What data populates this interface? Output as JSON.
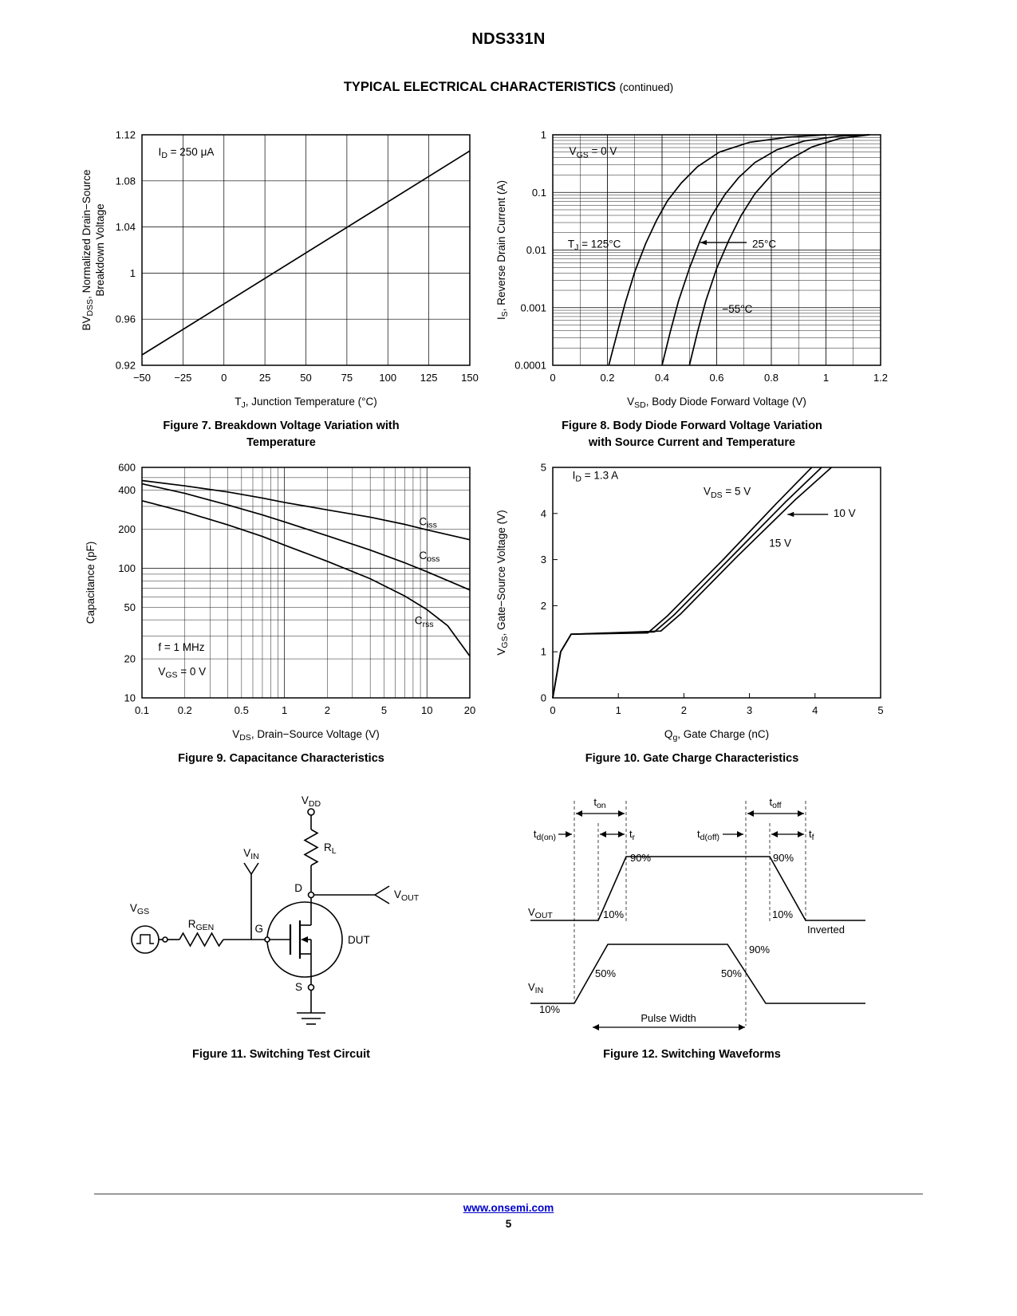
{
  "page": {
    "title": "NDS331N",
    "section_heading": "TYPICAL ELECTRICAL CHARACTERISTICS",
    "section_continued": "(continued)",
    "footer_link": "www.onsemi.com",
    "page_number": "5"
  },
  "captions": {
    "fig7": [
      "Figure 7. Breakdown Voltage Variation with",
      "Temperature"
    ],
    "fig8": [
      "Figure 8. Body Diode Forward Voltage Variation",
      "with Source Current and Temperature"
    ],
    "fig9": [
      "Figure 9. Capacitance Characteristics"
    ],
    "fig10": [
      "Figure 10. Gate Charge Characteristics"
    ],
    "fig11": [
      "Figure 11. Switching Test Circuit"
    ],
    "fig12": [
      "Figure 12. Switching Waveforms"
    ]
  },
  "chart_data": [
    {
      "id": "fig7",
      "type": "line",
      "grid": "both",
      "x": {
        "label": "T~J~, Junction Temperature (°C)",
        "scale": "linear",
        "min": -50,
        "max": 150,
        "ticks": [
          -50,
          -25,
          0,
          25,
          50,
          75,
          100,
          125,
          150
        ],
        "tick_labels": [
          "−50",
          "−25",
          "0",
          "25",
          "50",
          "75",
          "100",
          "125",
          "150"
        ]
      },
      "y": {
        "label_lines": [
          "BV~DSS~, Normalized Drain−Source",
          "Breakdown Voltage"
        ],
        "scale": "linear",
        "min": 0.92,
        "max": 1.12,
        "ticks": [
          0.92,
          0.96,
          1,
          1.04,
          1.08,
          1.12
        ],
        "tick_labels": [
          "0.92",
          "0.96",
          "1",
          "1.04",
          "1.08",
          "1.12"
        ]
      },
      "series": [
        {
          "name": "bvdss-normalized",
          "points": [
            [
              -50,
              0.929
            ],
            [
              150,
              1.106
            ]
          ]
        }
      ],
      "annotations": [
        {
          "text": "I~D~ = 250 μA",
          "x": -40,
          "y": 1.102
        }
      ]
    },
    {
      "id": "fig8",
      "type": "line",
      "grid": "both",
      "x": {
        "label": "V~SD~, Body Diode Forward Voltage (V)",
        "scale": "linear",
        "min": 0,
        "max": 1.2,
        "minor_step": 0.1,
        "ticks": [
          0,
          0.2,
          0.4,
          0.6,
          0.8,
          1,
          1.2
        ],
        "tick_labels": [
          "0",
          "0.2",
          "0.4",
          "0.6",
          "0.8",
          "1",
          "1.2"
        ]
      },
      "y": {
        "label_lines": [
          "I~S~, Reverse Drain Current (A)"
        ],
        "scale": "log",
        "min": 0.0001,
        "max": 1,
        "ticks": [
          1,
          0.1,
          0.01,
          0.001,
          0.0001
        ],
        "tick_labels": [
          "1",
          "0.1",
          "0.01",
          "0.001",
          "0.0001"
        ]
      },
      "series": [
        {
          "name": "tj-125c",
          "points": [
            [
              0.205,
              0.0001
            ],
            [
              0.235,
              0.00035
            ],
            [
              0.265,
              0.0012
            ],
            [
              0.3,
              0.0042
            ],
            [
              0.34,
              0.013
            ],
            [
              0.38,
              0.033
            ],
            [
              0.42,
              0.072
            ],
            [
              0.47,
              0.145
            ],
            [
              0.53,
              0.28
            ],
            [
              0.61,
              0.5
            ],
            [
              0.72,
              0.74
            ],
            [
              0.86,
              0.91
            ],
            [
              1.0,
              1.0
            ]
          ]
        },
        {
          "name": "tj-25c",
          "points": [
            [
              0.4,
              0.0001
            ],
            [
              0.43,
              0.00038
            ],
            [
              0.46,
              0.0013
            ],
            [
              0.5,
              0.0048
            ],
            [
              0.54,
              0.015
            ],
            [
              0.58,
              0.038
            ],
            [
              0.63,
              0.092
            ],
            [
              0.68,
              0.18
            ],
            [
              0.74,
              0.33
            ],
            [
              0.82,
              0.55
            ],
            [
              0.92,
              0.78
            ],
            [
              1.05,
              0.95
            ],
            [
              1.16,
              1.0
            ]
          ]
        },
        {
          "name": "tj-minus55c",
          "points": [
            [
              0.5,
              0.0001
            ],
            [
              0.53,
              0.00038
            ],
            [
              0.56,
              0.0013
            ],
            [
              0.6,
              0.0048
            ],
            [
              0.645,
              0.015
            ],
            [
              0.69,
              0.04
            ],
            [
              0.74,
              0.095
            ],
            [
              0.8,
              0.2
            ],
            [
              0.87,
              0.38
            ],
            [
              0.95,
              0.62
            ],
            [
              1.05,
              0.86
            ],
            [
              1.16,
              1.0
            ]
          ]
        }
      ],
      "annotations": [
        {
          "text": "V~GS~ = 0 V",
          "x": 0.06,
          "y": 0.45
        },
        {
          "text": "T~J~ = 125°C",
          "x": 0.055,
          "y": 0.011
        },
        {
          "text": "25°C",
          "x": 0.73,
          "y": 0.011,
          "arrow": {
            "from": [
              0.71,
              0.0135
            ],
            "to": [
              0.54,
              0.0135
            ]
          }
        },
        {
          "text": "−55°C",
          "x": 0.62,
          "y": 0.00082
        }
      ]
    },
    {
      "id": "fig9",
      "type": "line",
      "grid": "both",
      "x": {
        "label": "V~DS~, Drain−Source Voltage (V)",
        "scale": "log",
        "min": 0.1,
        "max": 20,
        "ticks": [
          0.1,
          0.2,
          0.5,
          1,
          2,
          5,
          10,
          20
        ],
        "tick_labels": [
          "0.1",
          "0.2",
          "0.5",
          "1",
          "2",
          "5",
          "10",
          "20"
        ]
      },
      "y": {
        "label_lines": [
          "Capacitance (pF)"
        ],
        "scale": "log",
        "min": 10,
        "max": 600,
        "ticks": [
          600,
          400,
          200,
          100,
          50,
          20,
          10
        ],
        "tick_labels": [
          "600",
          "400",
          "200",
          "100",
          "50",
          "20",
          "10"
        ]
      },
      "series": [
        {
          "name": "ciss",
          "points": [
            [
              0.1,
              475
            ],
            [
              0.2,
              432
            ],
            [
              0.4,
              388
            ],
            [
              0.7,
              348
            ],
            [
              1,
              322
            ],
            [
              2,
              282
            ],
            [
              4,
              248
            ],
            [
              7,
              218
            ],
            [
              10,
              198
            ],
            [
              20,
              166
            ]
          ]
        },
        {
          "name": "coss",
          "points": [
            [
              0.1,
              448
            ],
            [
              0.2,
              378
            ],
            [
              0.4,
              308
            ],
            [
              0.7,
              258
            ],
            [
              1,
              228
            ],
            [
              2,
              178
            ],
            [
              4,
              138
            ],
            [
              7,
              110
            ],
            [
              10,
              94
            ],
            [
              20,
              68
            ]
          ]
        },
        {
          "name": "crss",
          "points": [
            [
              0.1,
              332
            ],
            [
              0.2,
              272
            ],
            [
              0.4,
              216
            ],
            [
              0.7,
              176
            ],
            [
              1,
              151
            ],
            [
              2,
              113
            ],
            [
              4,
              83
            ],
            [
              7,
              61
            ],
            [
              10,
              48
            ],
            [
              14,
              36
            ],
            [
              20,
              21
            ]
          ]
        }
      ],
      "annotations": [
        {
          "text": "f = 1 MHz",
          "x": 0.13,
          "y": 23
        },
        {
          "text": "V~GS~ = 0 V",
          "x": 0.13,
          "y": 15
        },
        {
          "text": "C~iss~",
          "x": 8.8,
          "y": 215
        },
        {
          "text": "C~oss~",
          "x": 8.8,
          "y": 118
        },
        {
          "text": "C~rss~",
          "x": 8.2,
          "y": 37
        }
      ]
    },
    {
      "id": "fig10",
      "type": "line",
      "grid": "none",
      "x": {
        "label": "Q~g~, Gate Charge (nC)",
        "scale": "linear",
        "min": 0,
        "max": 5,
        "ticks": [
          0,
          1,
          2,
          3,
          4,
          5
        ],
        "tick_labels": [
          "0",
          "1",
          "2",
          "3",
          "4",
          "5"
        ]
      },
      "y": {
        "label_lines": [
          "V~GS~, Gate−Source Voltage (V)"
        ],
        "scale": "linear",
        "min": 0,
        "max": 5,
        "ticks": [
          0,
          1,
          2,
          3,
          4,
          5
        ],
        "tick_labels": [
          "0",
          "1",
          "2",
          "3",
          "4",
          "5"
        ]
      },
      "series": [
        {
          "name": "vds-5v",
          "points": [
            [
              0,
              0
            ],
            [
              0.12,
              1.0
            ],
            [
              0.28,
              1.38
            ],
            [
              1.45,
              1.41
            ],
            [
              1.75,
              1.78
            ],
            [
              2.6,
              3.0
            ],
            [
              3.4,
              4.2
            ],
            [
              3.95,
              5.0
            ]
          ]
        },
        {
          "name": "vds-10v",
          "points": [
            [
              0,
              0
            ],
            [
              0.12,
              1.0
            ],
            [
              0.28,
              1.38
            ],
            [
              1.55,
              1.43
            ],
            [
              1.85,
              1.8
            ],
            [
              2.7,
              3.02
            ],
            [
              3.55,
              4.25
            ],
            [
              4.1,
              5.0
            ]
          ]
        },
        {
          "name": "vds-15v",
          "points": [
            [
              0,
              0
            ],
            [
              0.12,
              1.0
            ],
            [
              0.28,
              1.38
            ],
            [
              1.65,
              1.45
            ],
            [
              1.95,
              1.82
            ],
            [
              2.8,
              3.05
            ],
            [
              3.7,
              4.3
            ],
            [
              4.25,
              5.0
            ]
          ]
        }
      ],
      "annotations": [
        {
          "text": "I~D~ = 1.3 A",
          "x": 0.3,
          "y": 4.75
        },
        {
          "text": "V~DS~ = 5 V",
          "x": 2.3,
          "y": 4.4
        },
        {
          "text": "10 V",
          "x": 4.28,
          "y": 3.93,
          "arrow": {
            "from": [
              4.2,
              3.98
            ],
            "to": [
              3.58,
              3.98
            ]
          }
        },
        {
          "text": "15 V",
          "x": 3.3,
          "y": 3.28
        }
      ]
    }
  ],
  "circuit": {
    "labels": {
      "vdd": "V~DD~",
      "rl": "R~L~",
      "d": "D",
      "vout": "V~OUT~",
      "g": "G",
      "dut": "DUT",
      "s": "S",
      "rgen": "R~GEN~",
      "vgs": "V~GS~",
      "vin": "V~IN~"
    }
  },
  "waveform": {
    "labels": {
      "ton": "t~on~",
      "toff": "t~off~",
      "td_on": "t~d(on)~",
      "tr": "t~r~",
      "td_off": "t~d(off)~",
      "tf": "t~f~",
      "vout": "V~OUT~",
      "vin": "V~IN~",
      "p90": "90%",
      "p10": "10%",
      "p50": "50%",
      "inverted": "Inverted",
      "pulse_width": "Pulse Width"
    }
  }
}
